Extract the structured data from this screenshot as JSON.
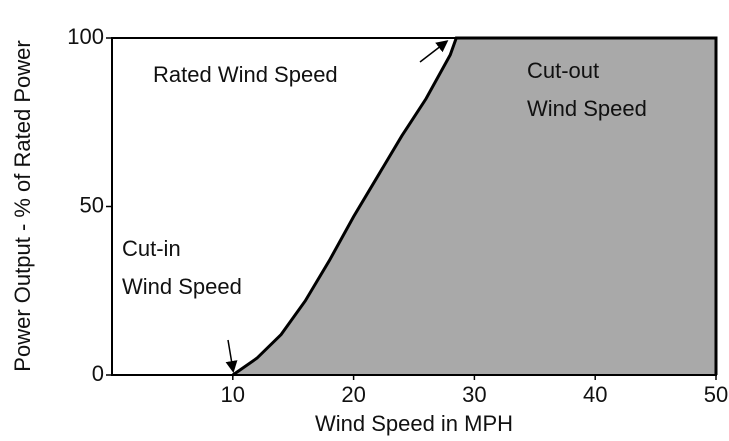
{
  "chart_data": {
    "type": "area",
    "x_label": "Wind Speed in MPH",
    "y_label": "Power Output - % of Rated Power",
    "x": [
      10,
      12,
      14,
      16,
      18,
      20,
      22,
      24,
      26,
      28,
      28.5,
      50,
      50
    ],
    "values": [
      0,
      5,
      12,
      22,
      34,
      47,
      59,
      71,
      82,
      95,
      100,
      100,
      0
    ],
    "color": "#a9a9a9",
    "line_color": "#000000",
    "xlim": [
      0,
      50
    ],
    "ylim": [
      0,
      100
    ],
    "xticks": [
      10,
      20,
      30,
      40,
      50
    ],
    "yticks": [
      0,
      50,
      100
    ],
    "annotations": [
      {
        "lines": [
          "Rated Wind Speed"
        ]
      },
      {
        "lines": [
          "Cut-out",
          "Wind Speed"
        ]
      },
      {
        "lines": [
          "Cut-in",
          "Wind Speed"
        ]
      }
    ]
  }
}
